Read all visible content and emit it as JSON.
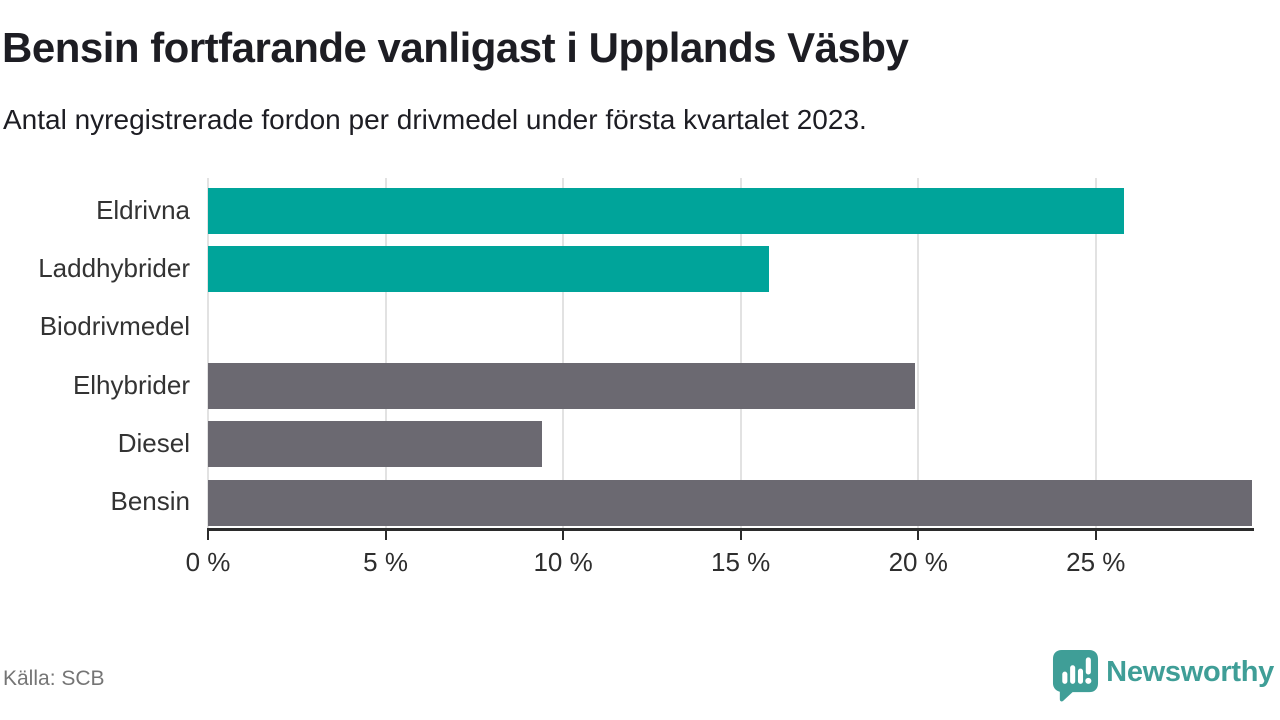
{
  "header": {
    "title": "Bensin fortfarande vanligast i Upplands Väsby",
    "subtitle": "Antal nyregistrerade fordon per drivmedel under första kvartalet 2023."
  },
  "chart_data": {
    "type": "bar",
    "orientation": "horizontal",
    "title": "Bensin fortfarande vanligast i Upplands Väsby",
    "subtitle": "Antal nyregistrerade fordon per drivmedel under första kvartalet 2023.",
    "categories": [
      "Eldrivna",
      "Laddhybrider",
      "Biodrivmedel",
      "Elhybrider",
      "Diesel",
      "Bensin"
    ],
    "values": [
      25.8,
      15.8,
      0,
      19.9,
      9.4,
      29.4
    ],
    "unit": "%",
    "bar_colors": [
      "#00a49a",
      "#00a49a",
      "#00a49a",
      "#6b6971",
      "#6b6971",
      "#6b6971"
    ],
    "xlim": [
      0,
      29.4
    ],
    "x_ticks": [
      0,
      5,
      10,
      15,
      20,
      25
    ],
    "x_tick_labels": [
      "0 %",
      "5 %",
      "10 %",
      "15 %",
      "20 %",
      "25 %"
    ],
    "grid": "vertical-gridlines-on",
    "legend": "none"
  },
  "footer": {
    "source": "Källa: SCB",
    "brand_name": "Newsworthy"
  },
  "colors": {
    "accent_teal": "#00a49a",
    "bar_gray": "#6b6971",
    "gridline": "#e2e2e2",
    "axis": "#2b2b2b",
    "text_dark": "#1d1d23",
    "text_muted": "#757575",
    "brand_teal": "#3f9e97"
  },
  "icons": {
    "brand_logo": "newsworthy-speech-bubble-chart-icon"
  }
}
